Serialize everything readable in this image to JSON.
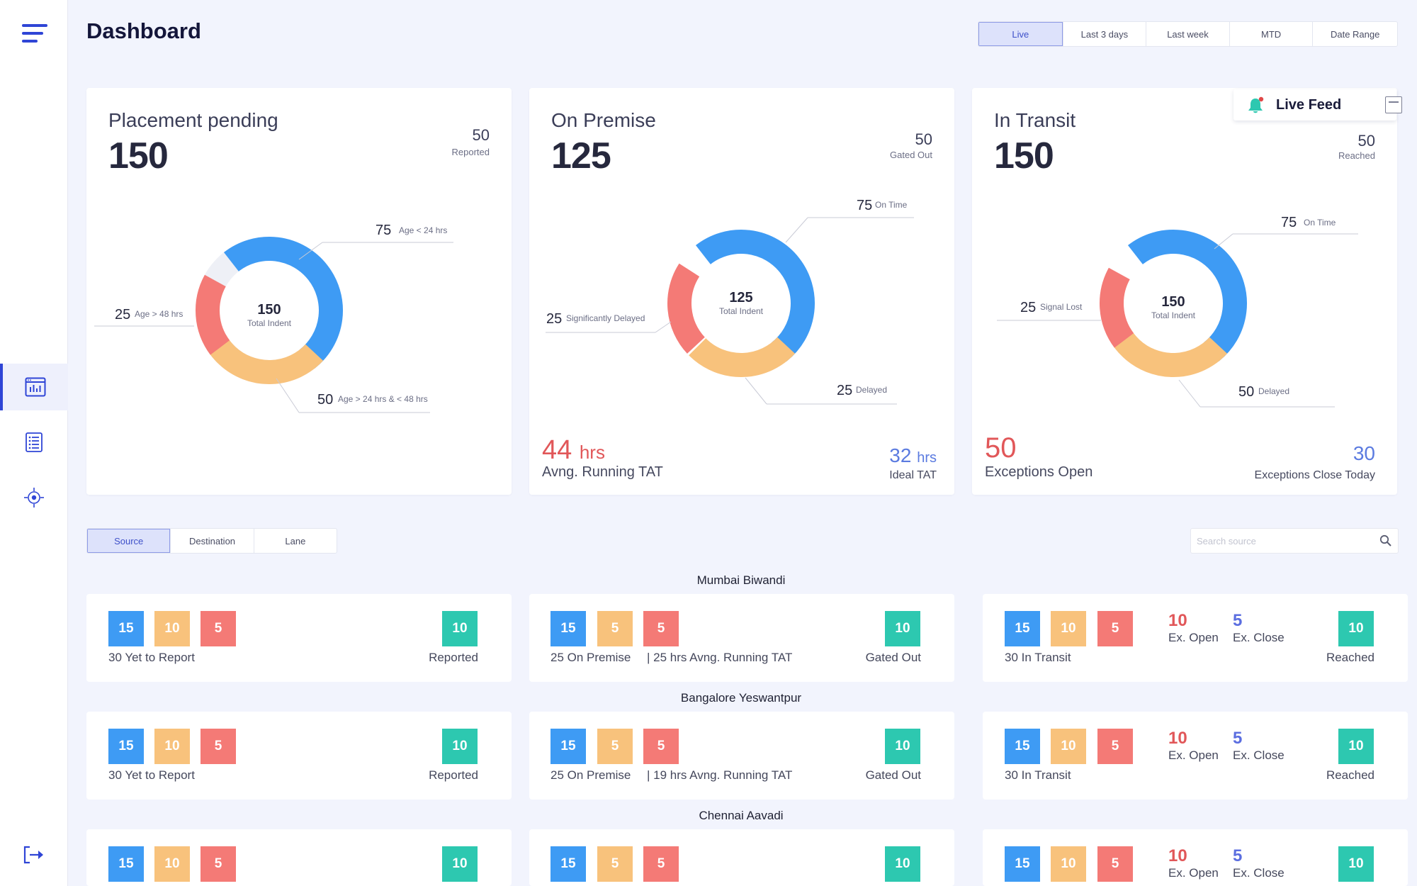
{
  "header": {
    "title": "Dashboard",
    "time_filters": [
      "Live",
      "Last 3 days",
      "Last week",
      "MTD",
      "Date Range"
    ],
    "time_filter_selected": "Live"
  },
  "colors": {
    "accent": "#2f45d6",
    "blue": "#3e9bf4",
    "orange": "#f8c27c",
    "red": "#f47a76",
    "teal": "#2dc8b0",
    "exception_red": "#e15759",
    "ideal_blue": "#5b7be0"
  },
  "sidebar": {
    "icons": [
      "menu-icon",
      "dashboard-icon",
      "list-icon",
      "location-target-icon",
      "logout-icon"
    ],
    "active": "dashboard-icon"
  },
  "live_feed": {
    "label": "Live Feed",
    "icon": "bell-icon"
  },
  "cards": {
    "placement": {
      "label": "Placement pending",
      "total": "150",
      "side_value": "50",
      "side_label": "Reported",
      "donut_center_value": "150",
      "donut_center_label": "Total Indent",
      "callouts": [
        {
          "value": "75",
          "label": "Age < 24 hrs"
        },
        {
          "value": "25",
          "label": "Age > 48 hrs"
        },
        {
          "value": "50",
          "label": "Age > 24 hrs & < 48 hrs"
        }
      ]
    },
    "premise": {
      "label": "On Premise",
      "total": "125",
      "side_value": "50",
      "side_label": "Gated Out",
      "donut_center_value": "125",
      "donut_center_label": "Total Indent",
      "callouts": [
        {
          "value": "75",
          "label": "On Time"
        },
        {
          "value": "25",
          "label": "Significantly Delayed"
        },
        {
          "value": "25",
          "label": "Delayed"
        }
      ],
      "footer_left_value": "44",
      "footer_left_unit": "hrs",
      "footer_left_label": "Avng. Running TAT",
      "footer_right_value": "32",
      "footer_right_unit": "hrs",
      "footer_right_label": "Ideal TAT"
    },
    "transit": {
      "label": "In Transit",
      "total": "150",
      "side_value": "50",
      "side_label": "Reached",
      "donut_center_value": "150",
      "donut_center_label": "Total Indent",
      "callouts": [
        {
          "value": "75",
          "label": "On Time"
        },
        {
          "value": "25",
          "label": "Signal Lost"
        },
        {
          "value": "50",
          "label": "Delayed"
        }
      ],
      "footer_left_value": "50",
      "footer_left_label": "Exceptions Open",
      "footer_right_value": "30",
      "footer_right_label": "Exceptions Close Today"
    }
  },
  "view_tabs": [
    "Source",
    "Destination",
    "Lane"
  ],
  "view_tab_selected": "Source",
  "search": {
    "placeholder": "Search source"
  },
  "rows": [
    {
      "city": "Mumbai Biwandi",
      "placement": {
        "boxes": [
          "15",
          "10",
          "5"
        ],
        "right": "10",
        "label": "30 Yet to Report",
        "right_label": "Reported"
      },
      "premise": {
        "boxes": [
          "15",
          "5",
          "5"
        ],
        "right": "10",
        "label": "25 On Premise",
        "label2": "| 25 hrs Avng. Running TAT",
        "right_label": "Gated Out"
      },
      "transit": {
        "boxes": [
          "15",
          "10",
          "5"
        ],
        "ex_open": "10",
        "ex_open_label": "Ex. Open",
        "ex_close": "5",
        "ex_close_label": "Ex. Close",
        "right": "10",
        "label": "30 In Transit",
        "right_label": "Reached"
      }
    },
    {
      "city": "Bangalore Yeswantpur",
      "placement": {
        "boxes": [
          "15",
          "10",
          "5"
        ],
        "right": "10",
        "label": "30 Yet to Report",
        "right_label": "Reported"
      },
      "premise": {
        "boxes": [
          "15",
          "5",
          "5"
        ],
        "right": "10",
        "label": "25 On Premise",
        "label2": "| 19 hrs Avng. Running TAT",
        "right_label": "Gated Out"
      },
      "transit": {
        "boxes": [
          "15",
          "10",
          "5"
        ],
        "ex_open": "10",
        "ex_open_label": "Ex. Open",
        "ex_close": "5",
        "ex_close_label": "Ex. Close",
        "right": "10",
        "label": "30 In Transit",
        "right_label": "Reached"
      }
    },
    {
      "city": "Chennai Aavadi",
      "placement": {
        "boxes": [
          "15",
          "10",
          "5"
        ],
        "right": "10"
      },
      "premise": {
        "boxes": [
          "15",
          "5",
          "5"
        ],
        "right": "10"
      },
      "transit": {
        "boxes": [
          "15",
          "10",
          "5"
        ],
        "ex_open": "10",
        "ex_open_label": "Ex. Open",
        "ex_close": "5",
        "ex_close_label": "Ex. Close",
        "right": "10"
      }
    }
  ]
}
